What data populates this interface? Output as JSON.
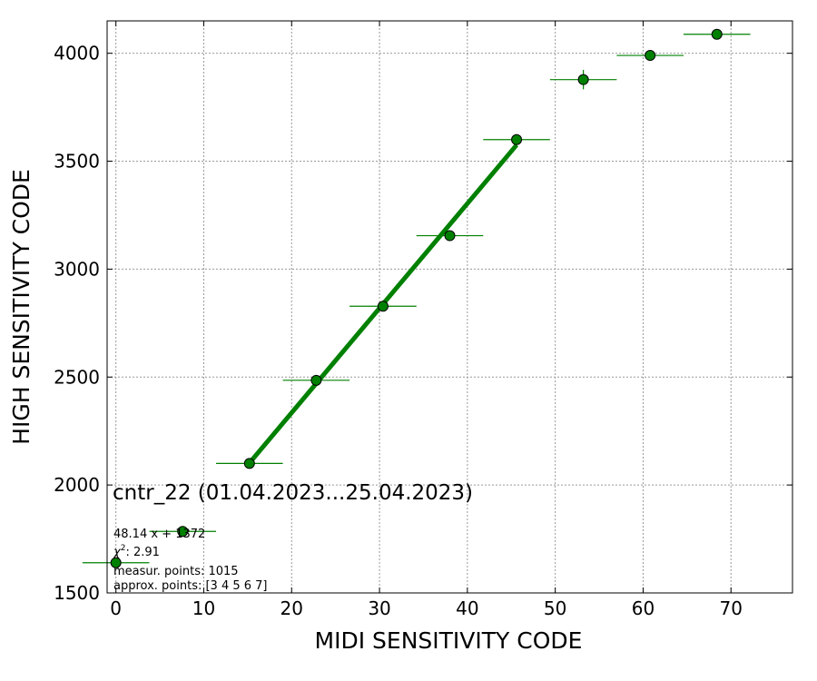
{
  "chart_data": {
    "type": "scatter",
    "title": "",
    "xlabel": "MIDI SENSITIVITY CODE",
    "ylabel": "HIGH SENSITIVITY CODE",
    "xlim": [
      -1,
      77
    ],
    "ylim": [
      1500,
      4150
    ],
    "x_ticks": [
      0,
      10,
      20,
      30,
      40,
      50,
      60,
      70
    ],
    "y_ticks": [
      1500,
      2000,
      2500,
      3000,
      3500,
      4000
    ],
    "grid": true,
    "points": [
      {
        "x": 0.0,
        "y": 1640,
        "xerr": 3.8,
        "yerr": 0
      },
      {
        "x": 7.6,
        "y": 1785,
        "xerr": 3.8,
        "yerr": 0
      },
      {
        "x": 15.2,
        "y": 2100,
        "xerr": 3.8,
        "yerr": 0
      },
      {
        "x": 22.8,
        "y": 2485,
        "xerr": 3.8,
        "yerr": 0
      },
      {
        "x": 30.4,
        "y": 2828,
        "xerr": 3.8,
        "yerr": 0
      },
      {
        "x": 38.0,
        "y": 3155,
        "xerr": 3.8,
        "yerr": 20
      },
      {
        "x": 45.6,
        "y": 3600,
        "xerr": 3.8,
        "yerr": 25
      },
      {
        "x": 53.2,
        "y": 3878,
        "xerr": 3.8,
        "yerr": 45
      },
      {
        "x": 60.8,
        "y": 3990,
        "xerr": 3.8,
        "yerr": 25
      },
      {
        "x": 68.4,
        "y": 4088,
        "xerr": 3.8,
        "yerr": 0
      }
    ],
    "fit_line": {
      "x": [
        15.2,
        45.6
      ],
      "y": [
        2102,
        3575
      ]
    },
    "colors": {
      "marker": "#008000",
      "line": "#008000",
      "grid": "#999999"
    },
    "annotation": {
      "title": "cntr_22 (01.04.2023...25.04.2023)",
      "formula": "48.14 x + 1372",
      "chi2_symbol": "χ",
      "chi2_power": "2",
      "chi2_value": ": 2.91",
      "measur_points": "measur. points: 1015",
      "approx_points": "approx. points: [3 4 5 6 7]"
    }
  }
}
